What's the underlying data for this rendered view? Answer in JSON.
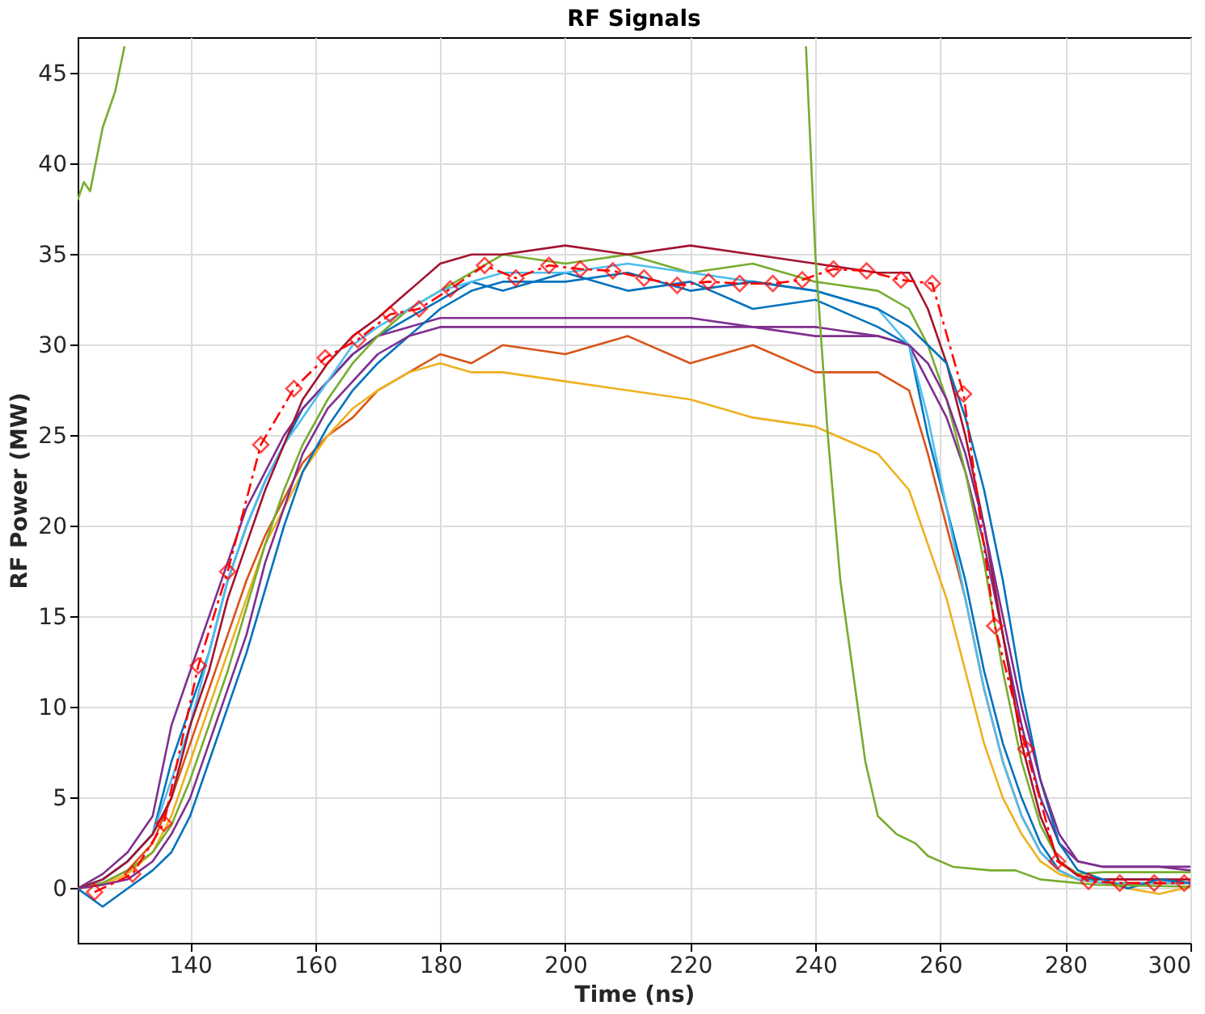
{
  "chart_data": {
    "type": "line",
    "title": "RF Signals",
    "xlabel": "Time (ns)",
    "ylabel": "RF Power (MW)",
    "xlim": [
      122,
      300
    ],
    "ylim": [
      -3,
      47
    ],
    "xticks": [
      140,
      160,
      180,
      200,
      220,
      240,
      260,
      280,
      300
    ],
    "yticks": [
      0,
      5,
      10,
      15,
      20,
      25,
      30,
      35,
      40,
      45
    ],
    "grid": true,
    "x": [
      122,
      126,
      130,
      134,
      137,
      140,
      143,
      146,
      149,
      152,
      155,
      158,
      162,
      166,
      170,
      175,
      180,
      185,
      190,
      200,
      210,
      220,
      230,
      240,
      250,
      255,
      258,
      261,
      264,
      267,
      270,
      273,
      276,
      279,
      282,
      286,
      290,
      295,
      300
    ],
    "series": [
      {
        "color": "#0072bd",
        "values": [
          0,
          0.5,
          1.5,
          3,
          7,
          10,
          13,
          17,
          20,
          22.5,
          24.5,
          26.5,
          28,
          29.5,
          30.5,
          31.5,
          32.5,
          33.5,
          33,
          34,
          33,
          33.5,
          32,
          32.5,
          31,
          30,
          25,
          21,
          17,
          12,
          8,
          5,
          2.5,
          1,
          0.5,
          0.5,
          0.5,
          0.5,
          0.3
        ]
      },
      {
        "color": "#d95319",
        "values": [
          0,
          0.3,
          1,
          2.5,
          5,
          8,
          11,
          14,
          17,
          19.5,
          21.5,
          23.5,
          25,
          26,
          27.5,
          28.5,
          29.5,
          29,
          30,
          29.5,
          30.5,
          29,
          30,
          28.5,
          28.5,
          27.5,
          24,
          20,
          16,
          11,
          7,
          4,
          2,
          1,
          0.5,
          0.3,
          0.3,
          0.3,
          0.3
        ]
      },
      {
        "color": "#edb120",
        "values": [
          0,
          0.2,
          0.8,
          2,
          4,
          7,
          10,
          13,
          16,
          19,
          21,
          23,
          25,
          26.5,
          27.5,
          28.5,
          29,
          28.5,
          28.5,
          28,
          27.5,
          27,
          26,
          25.5,
          24,
          22,
          19,
          16,
          12,
          8,
          5,
          3,
          1.5,
          0.8,
          0.5,
          0.3,
          0,
          -0.3,
          0.1
        ]
      },
      {
        "color": "#7e2f8e",
        "values": [
          0,
          0.8,
          2,
          4,
          9,
          12,
          15,
          18,
          21,
          23,
          25,
          26.5,
          28,
          29.5,
          30.5,
          31,
          31.5,
          31.5,
          31.5,
          31.5,
          31.5,
          31.5,
          31,
          31,
          30.5,
          30,
          28,
          26,
          23,
          19,
          14,
          9,
          5,
          2.5,
          1.5,
          1.2,
          1.2,
          1.2,
          1.2
        ]
      },
      {
        "color": "#77ac30",
        "values": [
          0,
          0.3,
          1,
          2,
          3.5,
          6,
          9,
          12,
          15.5,
          19,
          22,
          24.5,
          27,
          29,
          30.5,
          32,
          33,
          34,
          35,
          34.5,
          35,
          34,
          34.5,
          33.5,
          33,
          32,
          30,
          27,
          23,
          18,
          12,
          7,
          3.5,
          1.5,
          0.8,
          0.9,
          0.9,
          0.9,
          0.9
        ]
      },
      {
        "color": "#4dbeee",
        "values": [
          0,
          0.5,
          1.5,
          3,
          6,
          9,
          13,
          17,
          20,
          22.5,
          24.5,
          26,
          28,
          30,
          31,
          32,
          33,
          33.5,
          34,
          34,
          34.5,
          34,
          33.5,
          33,
          32,
          30,
          26,
          21,
          16,
          11,
          7,
          4,
          2,
          1,
          0.5,
          0.3,
          0.3,
          0.3,
          0.3
        ]
      },
      {
        "color": "#a2142f",
        "values": [
          0,
          0.5,
          1.5,
          3,
          5,
          9,
          12,
          16,
          19,
          22,
          24.5,
          27,
          29,
          30.5,
          31.5,
          33,
          34.5,
          35,
          35,
          35.5,
          35,
          35.5,
          35,
          34.5,
          34,
          34,
          32,
          29,
          25,
          20,
          14,
          8,
          4,
          1.5,
          0.7,
          0.5,
          0.5,
          0.5,
          0.5
        ]
      },
      {
        "color": "#0072bd",
        "values": [
          0,
          -1,
          0,
          1,
          2,
          4,
          7,
          10,
          13,
          16.5,
          20,
          23,
          25.5,
          27.5,
          29,
          30.5,
          32,
          33,
          33.5,
          33.5,
          34,
          33,
          33.5,
          33,
          32,
          31,
          30,
          29,
          26,
          22,
          17,
          11,
          6,
          2.5,
          1,
          0.5,
          0,
          0.5,
          0.3
        ]
      },
      {
        "color": "#7e2f8e",
        "values": [
          0,
          0.2,
          0.5,
          1.5,
          3,
          5,
          8,
          11,
          14,
          18,
          21,
          24,
          26.5,
          28,
          29.5,
          30.5,
          31,
          31,
          31,
          31,
          31,
          31,
          31,
          30.5,
          30.5,
          30,
          29,
          27,
          24,
          20,
          15,
          10,
          6,
          3,
          1.5,
          1.2,
          1.2,
          1.2,
          1
        ]
      },
      {
        "color": "#77ac30",
        "x": [
          122,
          123,
          124,
          126,
          128,
          129.5
        ],
        "values": [
          38,
          39,
          38.5,
          42,
          44,
          46.5
        ]
      },
      {
        "color": "#77ac30",
        "x": [
          238.5,
          240,
          242,
          244,
          246,
          248,
          250,
          253,
          256,
          258,
          262,
          268,
          272,
          276,
          285,
          300
        ],
        "values": [
          46.5,
          35,
          25,
          17,
          12,
          7,
          4,
          3,
          2.5,
          1.8,
          1.2,
          1,
          1,
          0.5,
          0.2,
          0.1
        ]
      },
      {
        "color": "#ff0000",
        "marker": "diamond",
        "line_style": "dashed",
        "x": [
          124.7,
          130.8,
          135.8,
          141.3,
          146,
          151.3,
          156.6,
          161.6,
          166.8,
          172,
          176.6,
          181.6,
          187.1,
          192.1,
          197.4,
          202.4,
          207.6,
          212.6,
          217.9,
          222.9,
          227.9,
          233.2,
          237.9,
          242.9,
          248.2,
          253.7,
          258.7,
          263.7,
          268.7,
          273.7,
          278.7,
          283.7,
          288.7,
          294.2,
          299
        ],
        "values": [
          -0.2,
          0.8,
          3.6,
          12.3,
          17.5,
          24.5,
          27.6,
          29.3,
          30.3,
          31.7,
          32,
          33.1,
          34.4,
          33.7,
          34.4,
          34.2,
          34.1,
          33.7,
          33.3,
          33.5,
          33.4,
          33.4,
          33.6,
          34.2,
          34.1,
          33.6,
          33.4,
          27.3,
          14.5,
          7.7,
          1.5,
          0.4,
          0.3,
          0.3,
          0.3
        ]
      }
    ]
  }
}
